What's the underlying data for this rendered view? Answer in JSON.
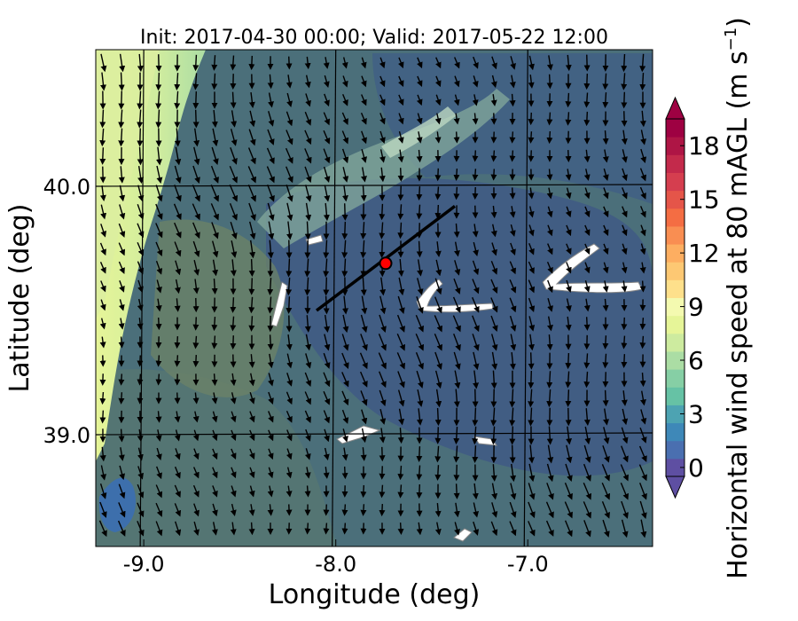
{
  "chart_data": {
    "type": "heatmap",
    "title": "Init: 2017-04-30 00:00; Valid: 2017-05-22 12:00",
    "xlabel": "Longitude (deg)",
    "ylabel": "Latitude (deg)",
    "xlim": [
      -9.25,
      -6.35
    ],
    "ylim": [
      38.55,
      40.55
    ],
    "xticks": [
      {
        "value": -9.0,
        "label": "-9.0"
      },
      {
        "value": -8.0,
        "label": "-8.0"
      },
      {
        "value": -7.0,
        "label": "-7.0"
      }
    ],
    "yticks": [
      {
        "value": 39.0,
        "label": "39.0"
      },
      {
        "value": 40.0,
        "label": "40.0"
      }
    ],
    "grid_lon": [
      -9.0,
      -8.0,
      -7.0
    ],
    "grid_lat": [
      39.0,
      40.0
    ],
    "transect": {
      "start": [
        -8.1,
        39.5
      ],
      "end": [
        -7.38,
        39.92
      ],
      "site": [
        -7.74,
        39.69
      ]
    },
    "wind_field": {
      "u_mean": 0.18,
      "v_mean": -1.0,
      "note_units": "m s-1"
    },
    "colorbar": {
      "label": "Horizontal wind speed at 80 mAGL (m s",
      "label_sup": "−1",
      "label_end": ")",
      "min": 0,
      "max": 20,
      "step": 1,
      "extend": "both",
      "tick_values": [
        0,
        3,
        6,
        9,
        12,
        15,
        18
      ],
      "tick_labels": [
        "0",
        "3",
        "6",
        "9",
        "12",
        "15",
        "18"
      ],
      "colors": [
        "#5e4fa2",
        "#4a6fb0",
        "#3e88b8",
        "#4da3b2",
        "#66c2a5",
        "#86cfa5",
        "#abdda4",
        "#cdeb9f",
        "#e6f598",
        "#f4fab0",
        "#fee08b",
        "#fdc873",
        "#fdae61",
        "#f98e52",
        "#f46d43",
        "#e55549",
        "#d53e4f",
        "#c32a4b",
        "#ae1545",
        "#9e0142"
      ],
      "under_color": "#5e4fa2",
      "over_color": "#9e0142"
    }
  }
}
